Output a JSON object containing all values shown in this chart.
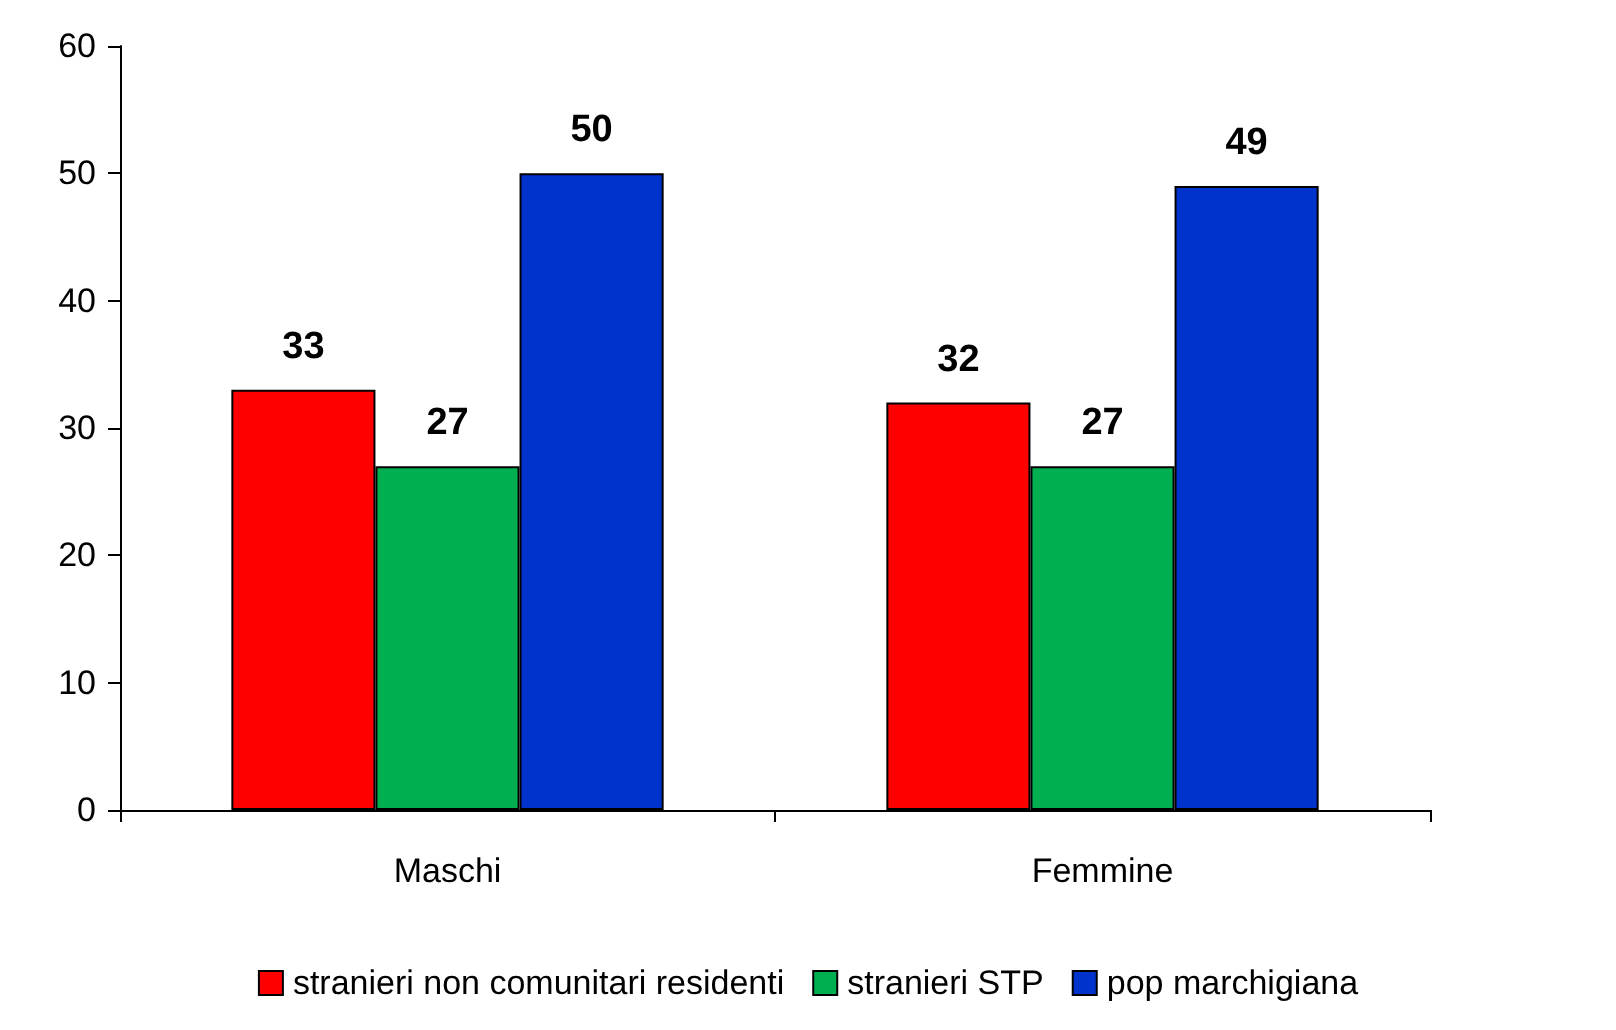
{
  "chart_data": {
    "type": "bar",
    "categories": [
      "Maschi",
      "Femmine"
    ],
    "series": [
      {
        "name": "stranieri non comunitari residenti",
        "color": "#ff0000",
        "values": [
          33,
          32
        ]
      },
      {
        "name": "stranieri STP",
        "color": "#00b050",
        "values": [
          27,
          27
        ]
      },
      {
        "name": "pop marchigiana",
        "color": "#0033cc",
        "values": [
          50,
          49
        ]
      }
    ],
    "ylim": [
      0,
      60
    ],
    "yticks": [
      0,
      10,
      20,
      30,
      40,
      50,
      60
    ],
    "grid": false,
    "legend": "bottom",
    "data_labels": true
  }
}
